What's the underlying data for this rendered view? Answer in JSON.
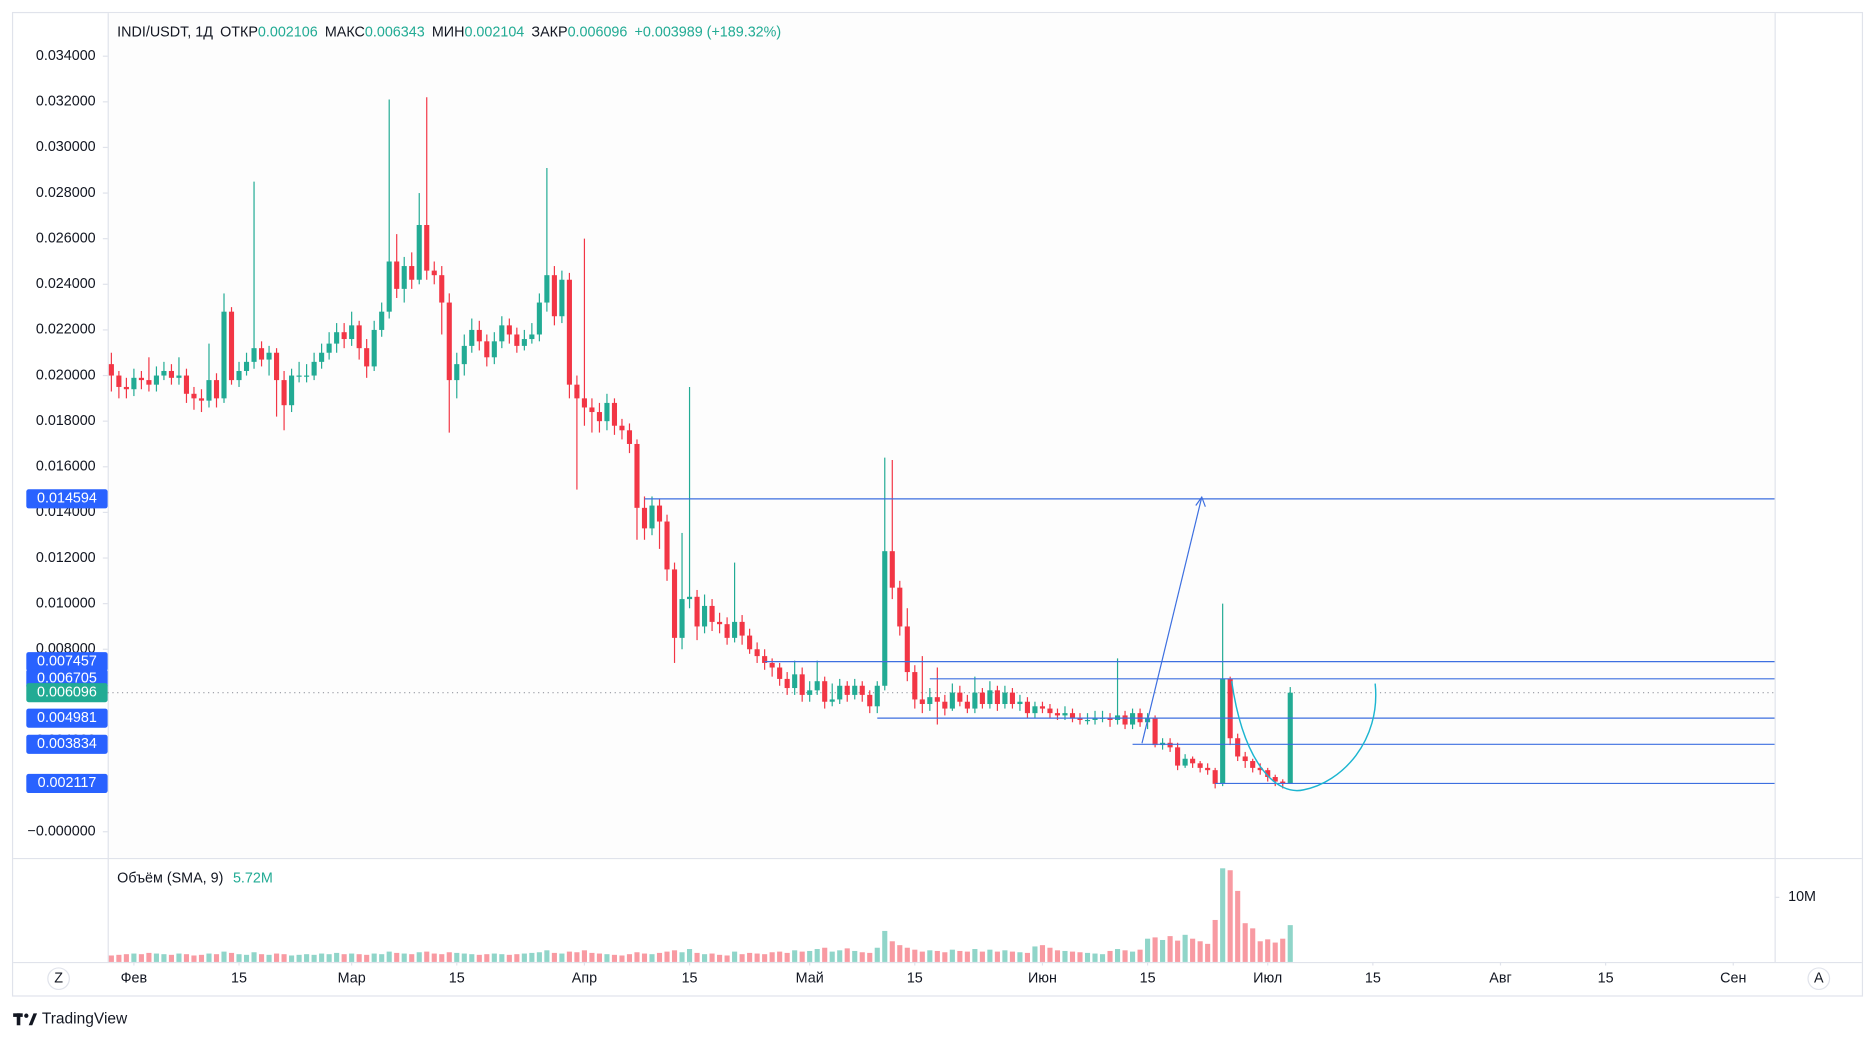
{
  "chart_data": {
    "type": "candlestick",
    "header": {
      "symbol": "INDI/USDT, 1Д",
      "fields": [
        {
          "label": "ОТКР",
          "value": "0.002106"
        },
        {
          "label": "МАКС",
          "value": "0.006343"
        },
        {
          "label": "МИН",
          "value": "0.002104"
        },
        {
          "label": "ЗАКР",
          "value": "0.006096"
        }
      ],
      "change": "+0.003989 (+189.32%)"
    },
    "up_color": "#22ab94",
    "down_color": "#f23645",
    "grid": false,
    "xlim": [
      -0.5,
      221.5
    ],
    "xticks": [
      {
        "value": 3,
        "label": "Фев"
      },
      {
        "value": 17,
        "label": "15"
      },
      {
        "value": 32,
        "label": "Мар"
      },
      {
        "value": 46,
        "label": "15"
      },
      {
        "value": 63,
        "label": "Апр"
      },
      {
        "value": 77,
        "label": "15"
      },
      {
        "value": 93,
        "label": "Май"
      },
      {
        "value": 107,
        "label": "15"
      },
      {
        "value": 124,
        "label": "Июн"
      },
      {
        "value": 138,
        "label": "15"
      },
      {
        "value": 154,
        "label": "Июл"
      },
      {
        "value": 168,
        "label": "15"
      },
      {
        "value": 185,
        "label": "Авг"
      },
      {
        "value": 199,
        "label": "15"
      },
      {
        "value": 216,
        "label": "Сен"
      }
    ],
    "ylim": [
      -0.00115,
      0.03594
    ],
    "yticks": [
      {
        "value": 0,
        "label": "−0.000000"
      },
      {
        "value": 0.002,
        "label": "0.002000"
      },
      {
        "value": 0.004,
        "label": "0.004000"
      },
      {
        "value": 0.006,
        "label": "0.006000"
      },
      {
        "value": 0.008,
        "label": "0.008000"
      },
      {
        "value": 0.01,
        "label": "0.010000"
      },
      {
        "value": 0.012,
        "label": "0.012000"
      },
      {
        "value": 0.014,
        "label": "0.014000"
      },
      {
        "value": 0.016,
        "label": "0.016000"
      },
      {
        "value": 0.018,
        "label": "0.018000"
      },
      {
        "value": 0.02,
        "label": "0.020000"
      },
      {
        "value": 0.022,
        "label": "0.022000"
      },
      {
        "value": 0.024,
        "label": "0.024000"
      },
      {
        "value": 0.026,
        "label": "0.026000"
      },
      {
        "value": 0.028,
        "label": "0.028000"
      },
      {
        "value": 0.03,
        "label": "0.030000"
      },
      {
        "value": 0.032,
        "label": "0.032000"
      },
      {
        "value": 0.034,
        "label": "0.034000"
      }
    ],
    "x": [
      0,
      1,
      2,
      3,
      4,
      5,
      6,
      7,
      8,
      9,
      10,
      11,
      12,
      13,
      14,
      15,
      16,
      17,
      18,
      19,
      20,
      21,
      22,
      23,
      24,
      25,
      26,
      27,
      28,
      29,
      30,
      31,
      32,
      33,
      34,
      35,
      36,
      37,
      38,
      39,
      40,
      41,
      42,
      43,
      44,
      45,
      46,
      47,
      48,
      49,
      50,
      51,
      52,
      53,
      54,
      55,
      56,
      57,
      58,
      59,
      60,
      61,
      62,
      63,
      64,
      65,
      66,
      67,
      68,
      69,
      70,
      71,
      72,
      73,
      74,
      75,
      76,
      77,
      78,
      79,
      80,
      81,
      82,
      83,
      84,
      85,
      86,
      87,
      88,
      89,
      90,
      91,
      92,
      93,
      94,
      95,
      96,
      97,
      98,
      99,
      100,
      101,
      102,
      103,
      104,
      105,
      106,
      107,
      108,
      109,
      110,
      111,
      112,
      113,
      114,
      115,
      116,
      117,
      118,
      119,
      120,
      121,
      122,
      123,
      124,
      125,
      126,
      127,
      128,
      129,
      130,
      131,
      132,
      133,
      134,
      135,
      136,
      137,
      138,
      139,
      140,
      141,
      142,
      143,
      144,
      145,
      146,
      147,
      148,
      149,
      150,
      151,
      152,
      153,
      154,
      155,
      156,
      157
    ],
    "open": [
      0.0205,
      0.02,
      0.0195,
      0.0194,
      0.0199,
      0.0198,
      0.0196,
      0.02,
      0.0202,
      0.0199,
      0.02,
      0.0192,
      0.019,
      0.0189,
      0.0198,
      0.019,
      0.0228,
      0.0198,
      0.0202,
      0.0206,
      0.0212,
      0.0207,
      0.021,
      0.0198,
      0.0187,
      0.02,
      0.02,
      0.02,
      0.0206,
      0.021,
      0.0214,
      0.0219,
      0.0216,
      0.0222,
      0.0212,
      0.0204,
      0.022,
      0.0228,
      0.025,
      0.0238,
      0.0248,
      0.0242,
      0.0266,
      0.0246,
      0.0244,
      0.0232,
      0.0198,
      0.0205,
      0.0213,
      0.022,
      0.0215,
      0.0208,
      0.0215,
      0.0222,
      0.0218,
      0.0213,
      0.0216,
      0.0218,
      0.0232,
      0.0244,
      0.0226,
      0.0242,
      0.0196,
      0.019,
      0.0186,
      0.0184,
      0.018,
      0.0188,
      0.0178,
      0.0176,
      0.017,
      0.0142,
      0.0133,
      0.0143,
      0.0136,
      0.0115,
      0.0085,
      0.0102,
      0.0103,
      0.009,
      0.0099,
      0.0092,
      0.0091,
      0.0085,
      0.0092,
      0.0086,
      0.008,
      0.0077,
      0.0074,
      0.0072,
      0.0067,
      0.0063,
      0.0069,
      0.006,
      0.0062,
      0.0066,
      0.0057,
      0.0058,
      0.0064,
      0.006,
      0.0064,
      0.006,
      0.0055,
      0.0064,
      0.0123,
      0.0107,
      0.009,
      0.007,
      0.0058,
      0.0056,
      0.0059,
      0.0057,
      0.0054,
      0.0061,
      0.0057,
      0.0054,
      0.0061,
      0.0056,
      0.0062,
      0.0056,
      0.0061,
      0.0056,
      0.0057,
      0.0052,
      0.0055,
      0.0054,
      0.0052,
      0.0051,
      0.0052,
      0.005,
      0.0049,
      0.0049,
      0.005,
      0.005,
      0.0049,
      0.0051,
      0.0047,
      0.0052,
      0.0048,
      0.005,
      0.0038,
      0.0039,
      0.0037,
      0.0029,
      0.0032,
      0.003,
      0.0028,
      0.0027,
      0.0021,
      0.0067,
      0.0041,
      0.0033,
      0.0031,
      0.0028,
      0.0027,
      0.0024,
      0.0022,
      0.002106
    ],
    "high": [
      0.021,
      0.0202,
      0.0199,
      0.0203,
      0.0202,
      0.0208,
      0.0204,
      0.0206,
      0.0205,
      0.0208,
      0.0203,
      0.0195,
      0.0194,
      0.0214,
      0.0201,
      0.0236,
      0.023,
      0.0206,
      0.021,
      0.0285,
      0.0215,
      0.0213,
      0.0212,
      0.0202,
      0.0203,
      0.0206,
      0.0205,
      0.021,
      0.0214,
      0.0219,
      0.0223,
      0.0223,
      0.0228,
      0.0224,
      0.0216,
      0.0224,
      0.0232,
      0.0321,
      0.0262,
      0.0252,
      0.0254,
      0.028,
      0.0322,
      0.025,
      0.0248,
      0.0236,
      0.021,
      0.0218,
      0.0225,
      0.0224,
      0.0218,
      0.0219,
      0.0226,
      0.0225,
      0.0221,
      0.022,
      0.0223,
      0.0236,
      0.0291,
      0.0248,
      0.0246,
      0.0245,
      0.02,
      0.026,
      0.019,
      0.0188,
      0.0192,
      0.019,
      0.0181,
      0.0179,
      0.0172,
      0.0147,
      0.0147,
      0.0146,
      0.0139,
      0.0118,
      0.0131,
      0.0195,
      0.0106,
      0.0104,
      0.0102,
      0.0096,
      0.0094,
      0.0118,
      0.0095,
      0.0089,
      0.0083,
      0.008,
      0.0076,
      0.0074,
      0.007,
      0.0075,
      0.0072,
      0.0066,
      0.0075,
      0.0068,
      0.0065,
      0.0067,
      0.0066,
      0.0067,
      0.0066,
      0.0062,
      0.0066,
      0.0164,
      0.0163,
      0.011,
      0.0098,
      0.0073,
      0.0077,
      0.0063,
      0.0072,
      0.006,
      0.0065,
      0.0064,
      0.006,
      0.0068,
      0.0063,
      0.0066,
      0.0064,
      0.0064,
      0.0063,
      0.006,
      0.0059,
      0.0057,
      0.0057,
      0.0056,
      0.0054,
      0.0055,
      0.0054,
      0.0052,
      0.0052,
      0.0053,
      0.0053,
      0.0052,
      0.0076,
      0.0053,
      0.0054,
      0.0054,
      0.0052,
      0.0051,
      0.0041,
      0.0041,
      0.0039,
      0.0034,
      0.0033,
      0.0031,
      0.003,
      0.0028,
      0.01,
      0.0068,
      0.0043,
      0.0035,
      0.0032,
      0.003,
      0.0028,
      0.0025,
      0.0023,
      0.006343
    ],
    "low": [
      0.0193,
      0.019,
      0.019,
      0.0191,
      0.0194,
      0.0193,
      0.0193,
      0.0198,
      0.0196,
      0.0196,
      0.0188,
      0.0185,
      0.0184,
      0.0186,
      0.0186,
      0.0188,
      0.0196,
      0.0195,
      0.02,
      0.0203,
      0.0204,
      0.02,
      0.0182,
      0.0176,
      0.0184,
      0.0197,
      0.0197,
      0.0198,
      0.0203,
      0.0207,
      0.021,
      0.0212,
      0.0213,
      0.0207,
      0.0199,
      0.0202,
      0.0217,
      0.0225,
      0.0234,
      0.0232,
      0.0238,
      0.024,
      0.0242,
      0.024,
      0.0218,
      0.0175,
      0.019,
      0.02,
      0.021,
      0.0211,
      0.0204,
      0.0205,
      0.0212,
      0.0214,
      0.021,
      0.0211,
      0.0214,
      0.0215,
      0.0228,
      0.0222,
      0.0223,
      0.019,
      0.015,
      0.0178,
      0.0175,
      0.0175,
      0.0176,
      0.0174,
      0.0172,
      0.0166,
      0.0128,
      0.0128,
      0.013,
      0.0124,
      0.011,
      0.0074,
      0.008,
      0.0098,
      0.0084,
      0.0087,
      0.0088,
      0.0087,
      0.0082,
      0.0083,
      0.0082,
      0.0078,
      0.0074,
      0.0071,
      0.0068,
      0.0064,
      0.006,
      0.006,
      0.0057,
      0.0057,
      0.006,
      0.0054,
      0.0055,
      0.0056,
      0.0057,
      0.0058,
      0.0057,
      0.0052,
      0.0052,
      0.0062,
      0.0102,
      0.0086,
      0.0066,
      0.0054,
      0.0052,
      0.0053,
      0.0047,
      0.0051,
      0.0053,
      0.0055,
      0.0052,
      0.0052,
      0.0054,
      0.0054,
      0.0053,
      0.0054,
      0.0054,
      0.0053,
      0.005,
      0.005,
      0.0052,
      0.005,
      0.0049,
      0.0049,
      0.0048,
      0.0047,
      0.0047,
      0.0047,
      0.0048,
      0.0046,
      0.0047,
      0.0045,
      0.0045,
      0.0046,
      0.0045,
      0.0037,
      0.0036,
      0.0035,
      0.0027,
      0.0028,
      0.0028,
      0.0026,
      0.0025,
      0.0019,
      0.002,
      0.0038,
      0.0031,
      0.0028,
      0.0026,
      0.0025,
      0.0022,
      0.002,
      0.0019,
      0.002104
    ],
    "close": [
      0.02,
      0.0195,
      0.0194,
      0.0199,
      0.0198,
      0.0196,
      0.02,
      0.0202,
      0.0199,
      0.02,
      0.0192,
      0.019,
      0.0189,
      0.0198,
      0.019,
      0.0228,
      0.0198,
      0.0202,
      0.0206,
      0.0212,
      0.0207,
      0.021,
      0.0198,
      0.0187,
      0.02,
      0.02,
      0.02,
      0.0206,
      0.021,
      0.0214,
      0.0219,
      0.0216,
      0.0222,
      0.0212,
      0.0204,
      0.022,
      0.0228,
      0.025,
      0.0238,
      0.0248,
      0.0242,
      0.0266,
      0.0246,
      0.0244,
      0.0232,
      0.0198,
      0.0205,
      0.0213,
      0.022,
      0.0215,
      0.0208,
      0.0215,
      0.0222,
      0.0218,
      0.0213,
      0.0216,
      0.0218,
      0.0232,
      0.0244,
      0.0226,
      0.0242,
      0.0196,
      0.019,
      0.0186,
      0.0184,
      0.018,
      0.0188,
      0.0178,
      0.0176,
      0.017,
      0.0142,
      0.0133,
      0.0143,
      0.0136,
      0.0115,
      0.0085,
      0.0102,
      0.0103,
      0.009,
      0.0099,
      0.0092,
      0.0091,
      0.0085,
      0.0092,
      0.0086,
      0.008,
      0.0077,
      0.0074,
      0.0072,
      0.0067,
      0.0063,
      0.0069,
      0.006,
      0.0062,
      0.0066,
      0.0057,
      0.0058,
      0.0064,
      0.006,
      0.0064,
      0.006,
      0.0055,
      0.0064,
      0.0123,
      0.0107,
      0.009,
      0.007,
      0.0058,
      0.0056,
      0.0059,
      0.0057,
      0.0054,
      0.0061,
      0.0057,
      0.0054,
      0.0061,
      0.0056,
      0.0062,
      0.0056,
      0.0061,
      0.0056,
      0.0057,
      0.0052,
      0.0055,
      0.0054,
      0.0052,
      0.0051,
      0.0052,
      0.005,
      0.0049,
      0.0049,
      0.005,
      0.005,
      0.0049,
      0.0051,
      0.0047,
      0.0052,
      0.0048,
      0.005,
      0.0038,
      0.0039,
      0.0037,
      0.0029,
      0.0032,
      0.003,
      0.0028,
      0.0027,
      0.0021,
      0.0067,
      0.0041,
      0.0033,
      0.0031,
      0.0028,
      0.0027,
      0.0024,
      0.0022,
      0.002106,
      0.006096
    ],
    "volume_title": "Объём (SMA, 9)",
    "volume_sma_label": "5.72M",
    "volume_ylim": [
      0,
      16.1
    ],
    "volume_yticks": [
      {
        "value": 10,
        "label": "10M"
      }
    ],
    "volume": [
      1.0,
      1.1,
      1.2,
      1.3,
      1.2,
      1.4,
      1.3,
      1.2,
      1.1,
      1.3,
      1.2,
      1.0,
      1.1,
      1.3,
      1.2,
      1.6,
      1.4,
      1.2,
      1.1,
      1.5,
      1.2,
      1.1,
      1.3,
      1.2,
      1.0,
      1.1,
      1.2,
      1.1,
      1.3,
      1.2,
      1.4,
      1.2,
      1.3,
      1.2,
      1.1,
      1.3,
      1.2,
      1.6,
      1.4,
      1.3,
      1.2,
      1.5,
      1.6,
      1.3,
      1.2,
      1.5,
      1.4,
      1.3,
      1.2,
      1.1,
      1.2,
      1.3,
      1.2,
      1.1,
      1.2,
      1.3,
      1.4,
      1.5,
      1.8,
      1.4,
      1.3,
      1.6,
      1.5,
      1.8,
      1.4,
      1.3,
      1.2,
      1.1,
      1.0,
      1.2,
      1.5,
      1.3,
      1.2,
      1.4,
      1.6,
      1.8,
      1.5,
      2.0,
      1.4,
      1.2,
      1.3,
      1.1,
      1.0,
      1.6,
      1.2,
      1.4,
      1.3,
      1.2,
      1.5,
      1.6,
      1.4,
      1.8,
      1.6,
      1.7,
      2.0,
      2.2,
      1.6,
      1.8,
      2.1,
      1.7,
      1.5,
      1.4,
      2.2,
      4.8,
      3.2,
      2.6,
      2.2,
      1.9,
      1.6,
      1.8,
      1.7,
      1.5,
      1.9,
      1.7,
      1.6,
      2.0,
      1.6,
      1.9,
      1.6,
      1.8,
      1.6,
      1.5,
      1.4,
      2.4,
      2.6,
      2.2,
      1.8,
      1.7,
      1.6,
      1.5,
      1.4,
      1.3,
      1.2,
      1.7,
      2.0,
      1.8,
      1.6,
      1.9,
      3.6,
      3.8,
      3.4,
      4.0,
      3.3,
      4.2,
      3.6,
      3.2,
      2.8,
      6.5,
      14.5,
      14.2,
      11.0,
      6.0,
      5.2,
      3.2,
      3.5,
      3.0,
      3.6,
      5.7
    ],
    "levels": [
      {
        "value": 0.014594,
        "from": 71
      },
      {
        "value": 0.007457,
        "from": 87
      },
      {
        "value": 0.006705,
        "from": 109
      },
      {
        "value": 0.004981,
        "from": 102
      },
      {
        "value": 0.003834,
        "from": 136
      },
      {
        "value": 0.002117,
        "from": 147
      }
    ],
    "last_price": 0.006096
  },
  "ui": {
    "scale_left": "Z",
    "scale_right": "A",
    "brand": "TradingView"
  }
}
